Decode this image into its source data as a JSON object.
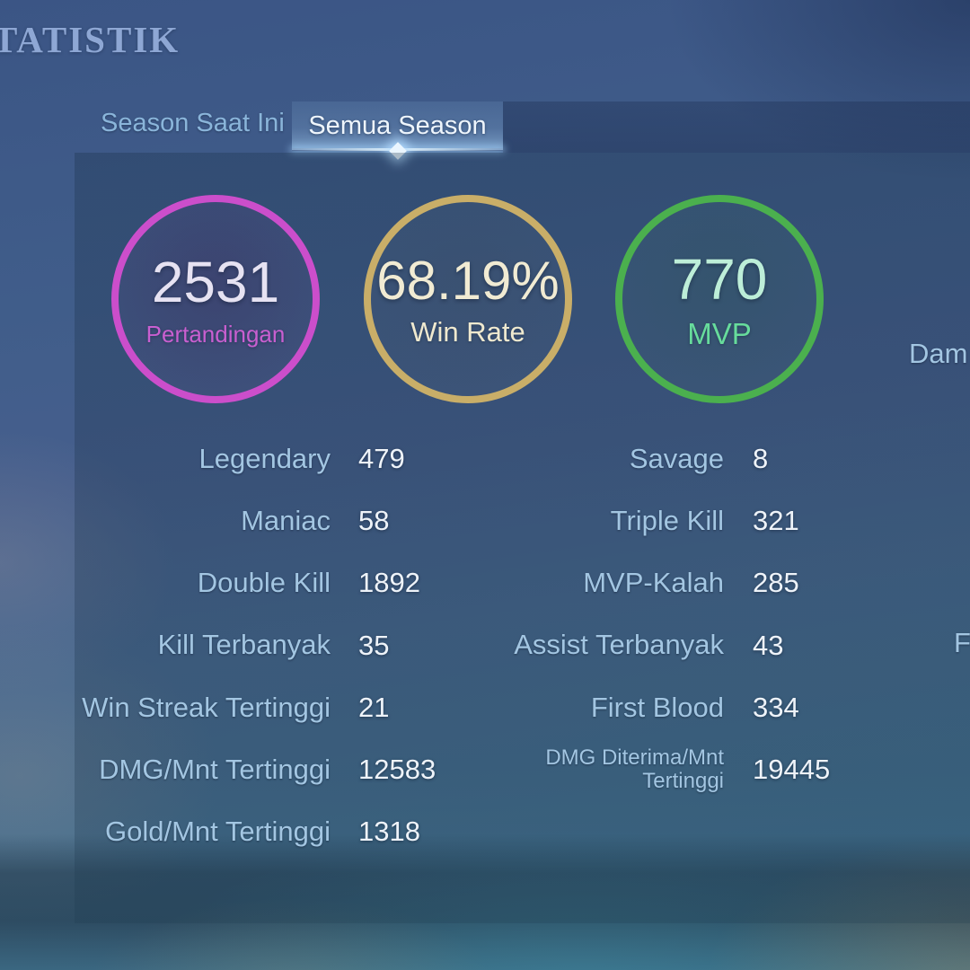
{
  "page": {
    "title": "TATISTIK"
  },
  "tabs": [
    {
      "label": "Season Saat Ini",
      "active": false
    },
    {
      "label": "Semua Season",
      "active": true
    }
  ],
  "summary_circles": [
    {
      "value": "2531",
      "label": "Pertandingan",
      "ring_color": "#cb4ecb",
      "value_color": "#e6e2f2",
      "label_color": "#c95fd0"
    },
    {
      "value": "68.19%",
      "label": "Win Rate",
      "ring_color": "#c9ae68",
      "value_color": "#f1ebd3",
      "label_color": "#efe9cf"
    },
    {
      "value": "770",
      "label": "MVP",
      "ring_color": "#4bb04e",
      "value_color": "#bdeed8",
      "label_color": "#67dc9c"
    }
  ],
  "stats": {
    "left": [
      {
        "label": "Legendary",
        "value": "479"
      },
      {
        "label": "Maniac",
        "value": "58"
      },
      {
        "label": "Double Kill",
        "value": "1892"
      },
      {
        "label": "Kill Terbanyak",
        "value": "35"
      },
      {
        "label": "Win Streak Tertinggi",
        "value": "21"
      },
      {
        "label": "DMG/Mnt Tertinggi",
        "value": "12583"
      },
      {
        "label": "Gold/Mnt Tertinggi",
        "value": "1318"
      }
    ],
    "right": [
      {
        "label": "Savage",
        "value": "8"
      },
      {
        "label": "Triple Kill",
        "value": "321"
      },
      {
        "label": "MVP-Kalah",
        "value": "285"
      },
      {
        "label": "Assist Terbanyak",
        "value": "43"
      },
      {
        "label": "First Blood",
        "value": "334"
      },
      {
        "label": "DMG Diterima/Mnt Tertinggi",
        "value": "19445"
      }
    ]
  },
  "partial_labels": {
    "damage": "Dam",
    "f": "F"
  },
  "colors": {
    "stat_label": "#a3c6e2",
    "stat_value": "#eef3f9",
    "tab_inactive_text": "#8ab5da",
    "tab_active_text": "#eef5fc",
    "title_text": "#8ea7d4"
  }
}
